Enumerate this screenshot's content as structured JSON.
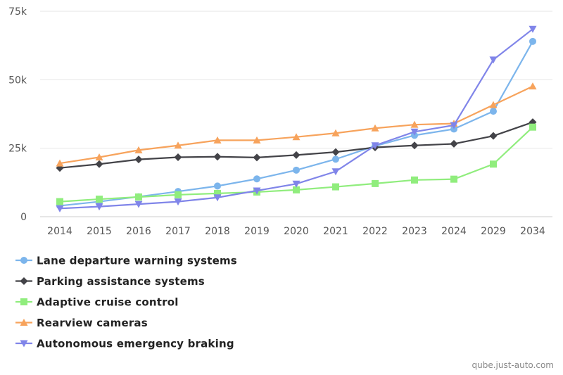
{
  "chart_data": {
    "type": "line",
    "title": "",
    "xlabel": "",
    "ylabel": "",
    "categories": [
      "2014",
      "2015",
      "2016",
      "2017",
      "2018",
      "2019",
      "2020",
      "2021",
      "2022",
      "2023",
      "2024",
      "2029",
      "2034"
    ],
    "ylim": [
      0,
      75000
    ],
    "yticks": [
      0,
      25000,
      50000,
      75000
    ],
    "ytick_labels": [
      "0",
      "25k",
      "50k",
      "75k"
    ],
    "grid": true,
    "legend_position": "bottom-left",
    "series": [
      {
        "name": "Lane departure warning systems",
        "color": "#7cb5ec",
        "marker": "circle",
        "values": [
          4000,
          5500,
          7300,
          9200,
          11200,
          13800,
          17000,
          21000,
          25800,
          29700,
          32000,
          38500,
          64000
        ]
      },
      {
        "name": "Parking assistance systems",
        "color": "#434348",
        "marker": "diamond",
        "values": [
          17800,
          19200,
          20900,
          21700,
          21900,
          21600,
          22500,
          23600,
          25300,
          26000,
          26600,
          29500,
          34500
        ]
      },
      {
        "name": "Adaptive cruise control",
        "color": "#90ed7d",
        "marker": "square",
        "values": [
          5500,
          6400,
          7200,
          8000,
          8500,
          9000,
          9800,
          10900,
          12100,
          13400,
          13700,
          19200,
          32700
        ]
      },
      {
        "name": "Rearview cameras",
        "color": "#f7a35c",
        "marker": "triangle",
        "values": [
          19500,
          21700,
          24300,
          26000,
          27900,
          27900,
          29100,
          30500,
          32300,
          33600,
          34000,
          40800,
          47600
        ]
      },
      {
        "name": "Autonomous emergency braking",
        "color": "#8085e9",
        "marker": "triangle-down",
        "values": [
          3000,
          3700,
          4600,
          5500,
          7000,
          9500,
          12000,
          16500,
          26000,
          31000,
          33400,
          57300,
          68500
        ]
      }
    ]
  },
  "credit": "qube.just-auto.com"
}
